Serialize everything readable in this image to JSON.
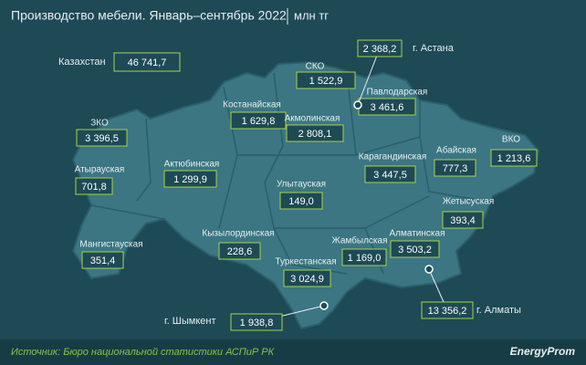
{
  "header": {
    "title": "Производство мебели. Январь–сентябрь 2022",
    "unit": "млн тг"
  },
  "total": {
    "label": "Казахстан",
    "value": "46 741,7"
  },
  "regions": [
    {
      "name": "СКО",
      "value": "1 522,9"
    },
    {
      "name": "Павлодарская",
      "value": "3 461,6"
    },
    {
      "name": "Костанайская",
      "value": "1 629,8"
    },
    {
      "name": "Акмолинская",
      "value": "2 808,1"
    },
    {
      "name": "ЗКО",
      "value": "3 396,5"
    },
    {
      "name": "Актюбинская",
      "value": "1 299,9"
    },
    {
      "name": "Карагандинская",
      "value": "3 447,5"
    },
    {
      "name": "Абайская",
      "value": "777,3"
    },
    {
      "name": "ВКО",
      "value": "1 213,6"
    },
    {
      "name": "Атырауская",
      "value": "701,8"
    },
    {
      "name": "Улытауская",
      "value": "149,0"
    },
    {
      "name": "Жетысуская",
      "value": "393,4"
    },
    {
      "name": "Мангистауская",
      "value": "351,4"
    },
    {
      "name": "Кызылординская",
      "value": "228,6"
    },
    {
      "name": "Жамбылская",
      "value": "1 169,0"
    },
    {
      "name": "Алматинская",
      "value": "3 503,2"
    },
    {
      "name": "Туркестанская",
      "value": "3 024,9"
    }
  ],
  "cities": [
    {
      "name": "г. Астана",
      "value": "2 368,2"
    },
    {
      "name": "г. Алматы",
      "value": "13 356,2"
    },
    {
      "name": "г. Шымкент",
      "value": "1 938,8"
    }
  ],
  "footer": {
    "source": "Источник: Бюро национальной статистики АСПиР РК",
    "logo": "EnergyProm"
  }
}
